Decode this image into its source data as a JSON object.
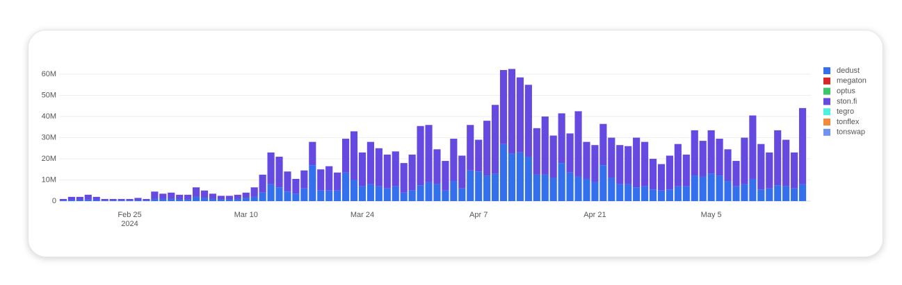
{
  "chart_data": {
    "type": "stacked_bar",
    "x": [
      "2024-02-17",
      "2024-02-18",
      "2024-02-19",
      "2024-02-20",
      "2024-02-21",
      "2024-02-22",
      "2024-02-23",
      "2024-02-24",
      "2024-02-25",
      "2024-02-26",
      "2024-02-27",
      "2024-02-28",
      "2024-02-29",
      "2024-03-01",
      "2024-03-02",
      "2024-03-03",
      "2024-03-04",
      "2024-03-05",
      "2024-03-06",
      "2024-03-07",
      "2024-03-08",
      "2024-03-09",
      "2024-03-10",
      "2024-03-11",
      "2024-03-12",
      "2024-03-13",
      "2024-03-14",
      "2024-03-15",
      "2024-03-16",
      "2024-03-17",
      "2024-03-18",
      "2024-03-19",
      "2024-03-20",
      "2024-03-21",
      "2024-03-22",
      "2024-03-23",
      "2024-03-24",
      "2024-03-25",
      "2024-03-26",
      "2024-03-27",
      "2024-03-28",
      "2024-03-29",
      "2024-03-30",
      "2024-03-31",
      "2024-04-01",
      "2024-04-02",
      "2024-04-03",
      "2024-04-04",
      "2024-04-05",
      "2024-04-06",
      "2024-04-07",
      "2024-04-08",
      "2024-04-09",
      "2024-04-10",
      "2024-04-11",
      "2024-04-12",
      "2024-04-13",
      "2024-04-14",
      "2024-04-15",
      "2024-04-16",
      "2024-04-17",
      "2024-04-18",
      "2024-04-19",
      "2024-04-20",
      "2024-04-21",
      "2024-04-22",
      "2024-04-23",
      "2024-04-24",
      "2024-04-25",
      "2024-04-26",
      "2024-04-27",
      "2024-04-28",
      "2024-04-29",
      "2024-04-30",
      "2024-05-01",
      "2024-05-02",
      "2024-05-03",
      "2024-05-04",
      "2024-05-05",
      "2024-05-06",
      "2024-05-07",
      "2024-05-08",
      "2024-05-09",
      "2024-05-10",
      "2024-05-11",
      "2024-05-12",
      "2024-05-13",
      "2024-05-14",
      "2024-05-15",
      "2024-05-16"
    ],
    "series": [
      {
        "name": "dedust",
        "color": "#3470ee",
        "values": [
          0.3,
          0.5,
          0.5,
          0.8,
          0.5,
          0.3,
          0.3,
          0.3,
          0.3,
          0.5,
          0.3,
          1,
          1,
          1,
          0.8,
          0.8,
          2,
          1.5,
          1,
          0.8,
          0.8,
          1,
          1.5,
          2,
          4,
          8,
          6.5,
          4.5,
          3.5,
          6,
          17,
          5,
          5,
          5,
          13.5,
          10,
          7,
          8,
          7,
          6,
          7,
          4,
          5,
          7.5,
          9,
          8,
          5,
          9.5,
          6,
          14.5,
          14,
          12,
          13,
          27,
          22.5,
          23,
          21,
          12.5,
          12.5,
          11,
          18,
          13.5,
          11.5,
          10.5,
          9,
          17,
          11,
          8,
          8,
          6.5,
          7,
          5.5,
          5,
          5.5,
          7,
          7,
          12,
          11.5,
          13,
          12,
          9.5,
          7,
          8,
          10.5,
          5.5,
          6,
          7.5,
          7,
          6,
          8
        ]
      },
      {
        "name": "megaton",
        "color": "#d62728",
        "values": [
          0,
          0,
          0,
          0,
          0,
          0,
          0,
          0,
          0,
          0,
          0,
          0,
          0,
          0,
          0,
          0,
          0,
          0,
          0,
          0,
          0,
          0,
          0,
          0,
          0,
          0,
          0,
          0,
          0,
          0,
          0,
          0,
          0,
          0,
          0,
          0,
          0,
          0,
          0,
          0,
          0,
          0,
          0,
          0,
          0,
          0,
          0,
          0,
          0,
          0,
          0,
          0,
          0,
          0,
          0,
          0,
          0,
          0,
          0,
          0,
          0,
          0,
          0,
          0,
          0,
          0,
          0,
          0,
          0,
          0,
          0,
          0,
          0,
          0,
          0,
          0,
          0,
          0,
          0,
          0,
          0,
          0,
          0,
          0,
          0,
          0,
          0,
          0,
          0,
          0
        ]
      },
      {
        "name": "optus",
        "color": "#3cc66b",
        "values": [
          0,
          0,
          0,
          0,
          0,
          0,
          0,
          0,
          0,
          0,
          0,
          0,
          0,
          0,
          0,
          0,
          0,
          0,
          0,
          0,
          0,
          0,
          0,
          0,
          0,
          0,
          0,
          0,
          0,
          0,
          0,
          0,
          0,
          0,
          0,
          0,
          0,
          0,
          0,
          0,
          0,
          0,
          0,
          0,
          0,
          0,
          0,
          0,
          0,
          0,
          0,
          0,
          0,
          0,
          0,
          0,
          0,
          0,
          0,
          0,
          0,
          0,
          0,
          0,
          0,
          0,
          0,
          0,
          0,
          0,
          0,
          0,
          0,
          0,
          0,
          0,
          0,
          0,
          0,
          0,
          0,
          0,
          0,
          0,
          0,
          0,
          0,
          0,
          0,
          0
        ]
      },
      {
        "name": "ston.fi",
        "color": "#6549e0",
        "values": [
          0.7,
          1.5,
          1.5,
          2.2,
          1.5,
          0.7,
          0.7,
          0.7,
          0.7,
          1,
          0.7,
          3.5,
          2.5,
          3,
          2.2,
          2.2,
          4.5,
          3.5,
          2.5,
          1.7,
          1.7,
          2,
          2.5,
          4.5,
          8.5,
          15,
          14.5,
          9.5,
          7,
          8.5,
          11,
          10,
          11.5,
          8.5,
          16,
          23,
          16,
          20,
          18,
          16,
          16.5,
          14,
          17,
          28,
          27,
          16.5,
          14,
          20,
          15.5,
          21.5,
          15,
          26,
          32.5,
          35,
          40,
          35.5,
          34,
          22,
          27.5,
          20,
          23.5,
          18.5,
          31,
          17.5,
          17.5,
          19.5,
          19,
          18.5,
          18,
          23.5,
          21,
          14.5,
          12.5,
          16,
          20,
          15,
          21.5,
          17,
          20.5,
          17.5,
          15,
          12,
          22,
          30,
          21.5,
          17,
          26,
          22,
          17,
          36
        ]
      },
      {
        "name": "tegro",
        "color": "#4ff0df",
        "values": [
          0,
          0,
          0,
          0,
          0,
          0,
          0,
          0,
          0,
          0,
          0,
          0,
          0,
          0,
          0,
          0,
          0,
          0,
          0,
          0,
          0,
          0,
          0,
          0,
          0,
          0,
          0,
          0,
          0,
          0,
          0,
          0,
          0,
          0,
          0,
          0,
          0,
          0,
          0,
          0,
          0,
          0,
          0,
          0,
          0,
          0,
          0,
          0,
          0,
          0,
          0,
          0,
          0,
          0,
          0,
          0,
          0,
          0,
          0,
          0,
          0,
          0,
          0,
          0,
          0,
          0,
          0,
          0,
          0,
          0,
          0,
          0,
          0,
          0,
          0,
          0,
          0,
          0,
          0,
          0,
          0,
          0,
          0,
          0,
          0,
          0,
          0,
          0,
          0,
          0
        ]
      },
      {
        "name": "tonflex",
        "color": "#f5893a",
        "values": [
          0,
          0,
          0,
          0,
          0,
          0,
          0,
          0,
          0,
          0,
          0,
          0,
          0,
          0,
          0,
          0,
          0,
          0,
          0,
          0,
          0,
          0,
          0,
          0,
          0,
          0,
          0,
          0,
          0,
          0,
          0,
          0,
          0,
          0,
          0,
          0,
          0,
          0,
          0,
          0,
          0,
          0,
          0,
          0,
          0,
          0,
          0,
          0,
          0,
          0,
          0,
          0,
          0,
          0,
          0,
          0,
          0,
          0,
          0,
          0,
          0,
          0,
          0,
          0,
          0,
          0,
          0,
          0,
          0,
          0,
          0,
          0,
          0,
          0,
          0,
          0,
          0,
          0,
          0,
          0,
          0,
          0,
          0,
          0,
          0,
          0,
          0,
          0,
          0,
          0
        ]
      },
      {
        "name": "tonswap",
        "color": "#7093f0",
        "values": [
          0,
          0,
          0,
          0,
          0,
          0,
          0,
          0,
          0,
          0,
          0,
          0,
          0,
          0,
          0,
          0,
          0,
          0,
          0,
          0,
          0,
          0,
          0,
          0,
          0,
          0,
          0,
          0,
          0,
          0,
          0,
          0,
          0,
          0,
          0,
          0,
          0,
          0,
          0,
          0,
          0,
          0,
          0,
          0,
          0,
          0,
          0,
          0,
          0,
          0,
          0,
          0,
          0,
          0,
          0,
          0,
          0,
          0,
          0,
          0,
          0,
          0,
          0,
          0,
          0,
          0,
          0,
          0,
          0,
          0,
          0,
          0,
          0,
          0,
          0,
          0,
          0,
          0,
          0,
          0,
          0,
          0,
          0,
          0,
          0,
          0,
          0,
          0,
          0,
          0
        ]
      }
    ],
    "xlim": [
      "2024-02-16",
      "2024-05-17"
    ],
    "xticks": [
      {
        "value": "2024-02-25",
        "label": "Feb 25"
      },
      {
        "value": "2024-03-10",
        "label": "Mar 10"
      },
      {
        "value": "2024-03-24",
        "label": "Mar 24"
      },
      {
        "value": "2024-04-07",
        "label": "Apr 7"
      },
      {
        "value": "2024-04-21",
        "label": "Apr 21"
      },
      {
        "value": "2024-05-05",
        "label": "May 5"
      }
    ],
    "xtick_year": "2024",
    "ylim": [
      0,
      61
    ],
    "yticks": [
      0,
      {
        "value": 10,
        "label": "10M"
      },
      {
        "value": 20,
        "label": "20M"
      },
      {
        "value": 30,
        "label": "30M"
      },
      {
        "value": 40,
        "label": "40M"
      },
      {
        "value": 50,
        "label": "50M"
      },
      {
        "value": 60,
        "label": "60M"
      }
    ],
    "grid": true,
    "legend": "right"
  }
}
